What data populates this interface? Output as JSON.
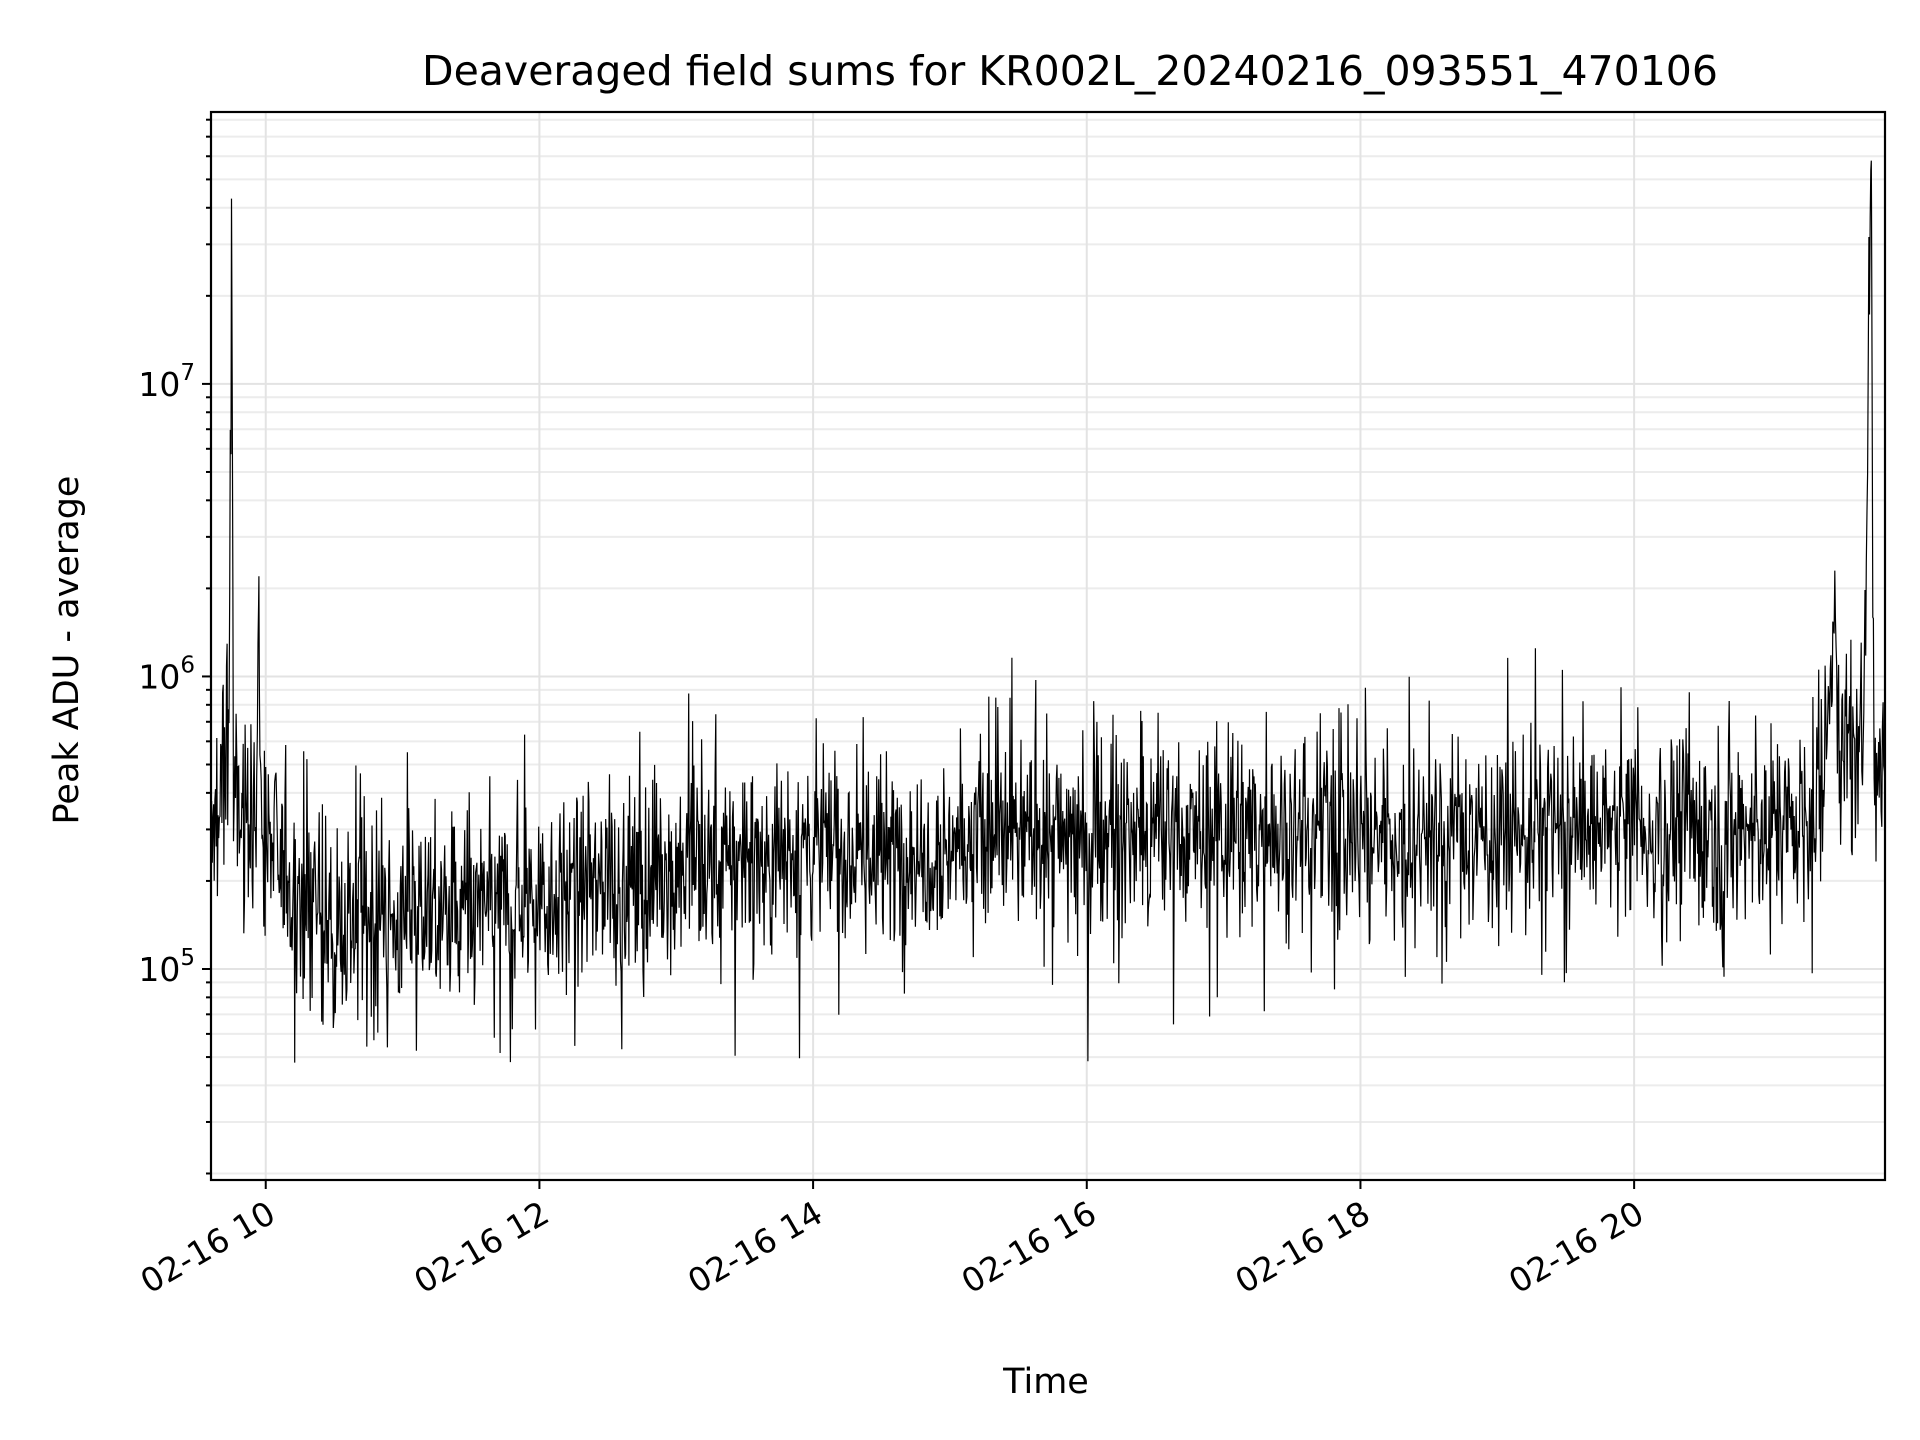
{
  "chart_data": {
    "type": "line",
    "title": "Deaveraged field sums for KR002L_20240216_093551_470106",
    "xlabel": "Time",
    "ylabel": "Peak ADU - average",
    "x_axis": {
      "kind": "time",
      "range": [
        "2024-02-16T09:36",
        "2024-02-16T21:50"
      ],
      "ticks": [
        "2024-02-16T10:00",
        "2024-02-16T12:00",
        "2024-02-16T14:00",
        "2024-02-16T16:00",
        "2024-02-16T18:00",
        "2024-02-16T20:00"
      ],
      "tick_labels": [
        "02-16 10",
        "02-16 12",
        "02-16 14",
        "02-16 16",
        "02-16 18",
        "02-16 20"
      ]
    },
    "y_axis": {
      "scale": "log",
      "range": [
        19000,
        85000000
      ],
      "ticks": [
        100000,
        1000000,
        10000000
      ],
      "tick_labels": [
        {
          "base": "10",
          "exp": "5"
        },
        {
          "base": "10",
          "exp": "6"
        },
        {
          "base": "10",
          "exp": "7"
        }
      ]
    },
    "grid": true,
    "legend": "none",
    "series_color": "#000000",
    "series": [
      {
        "points": [
          [
            "2024-02-16T09:36",
            250000
          ],
          [
            "2024-02-16T09:42",
            420000
          ],
          [
            "2024-02-16T09:44",
            900000
          ],
          [
            "2024-02-16T09:45",
            43000000
          ],
          [
            "2024-02-16T09:46",
            300000
          ],
          [
            "2024-02-16T09:50",
            350000
          ],
          [
            "2024-02-16T09:56",
            300000
          ],
          [
            "2024-02-16T09:57",
            2200000
          ],
          [
            "2024-02-16T09:58",
            300000
          ],
          [
            "2024-02-16T10:10",
            200000
          ],
          [
            "2024-02-16T10:30",
            140000
          ],
          [
            "2024-02-16T11:00",
            150000
          ],
          [
            "2024-02-16T11:30",
            160000
          ],
          [
            "2024-02-16T12:00",
            180000
          ],
          [
            "2024-02-16T12:30",
            200000
          ],
          [
            "2024-02-16T13:00",
            220000
          ],
          [
            "2024-02-16T13:30",
            240000
          ],
          [
            "2024-02-16T14:00",
            260000
          ],
          [
            "2024-02-16T14:30",
            250000
          ],
          [
            "2024-02-16T15:00",
            270000
          ],
          [
            "2024-02-16T15:30",
            290000
          ],
          [
            "2024-02-16T16:00",
            290000
          ],
          [
            "2024-02-16T16:30",
            280000
          ],
          [
            "2024-02-16T17:00",
            300000
          ],
          [
            "2024-02-16T17:30",
            300000
          ],
          [
            "2024-02-16T18:00",
            300000
          ],
          [
            "2024-02-16T18:30",
            290000
          ],
          [
            "2024-02-16T19:00",
            300000
          ],
          [
            "2024-02-16T19:30",
            300000
          ],
          [
            "2024-02-16T20:00",
            300000
          ],
          [
            "2024-02-16T20:30",
            300000
          ],
          [
            "2024-02-16T21:00",
            310000
          ],
          [
            "2024-02-16T21:20",
            350000
          ],
          [
            "2024-02-16T21:25",
            600000
          ],
          [
            "2024-02-16T21:28",
            2300000
          ],
          [
            "2024-02-16T21:30",
            550000
          ],
          [
            "2024-02-16T21:40",
            550000
          ],
          [
            "2024-02-16T21:44",
            58000000
          ],
          [
            "2024-02-16T21:45",
            600000
          ],
          [
            "2024-02-16T21:50",
            550000
          ]
        ]
      }
    ]
  }
}
